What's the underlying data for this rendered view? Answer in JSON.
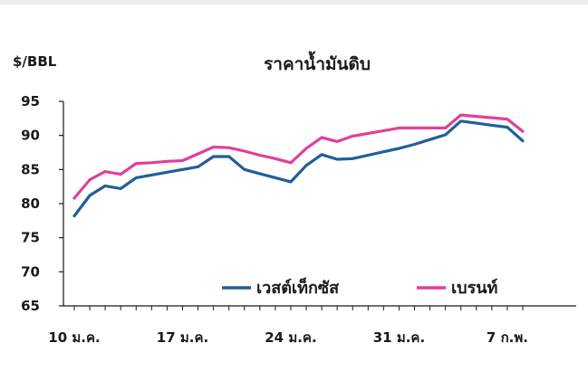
{
  "chart_data": {
    "type": "line",
    "title": "ราคาน้ำมันดิบ",
    "unit_label": "$/BBL",
    "xlabel": "",
    "ylabel": "",
    "ylim": [
      65,
      95
    ],
    "yticks": [
      65,
      70,
      75,
      80,
      85,
      90,
      95
    ],
    "x_tick_labels": [
      "10 ม.ค.",
      "17 ม.ค.",
      "24 ม.ค.",
      "31 ม.ค.",
      "7 ก.พ."
    ],
    "x_tick_index": [
      0,
      7,
      14,
      21,
      28
    ],
    "grid": false,
    "legend_position": "bottom-center",
    "series": [
      {
        "name": "เวสต์เท็กซัส",
        "color": "#1f5f99",
        "values": [
          78.2,
          81.2,
          82.6,
          82.2,
          83.8,
          84.2,
          84.6,
          85.0,
          85.4,
          86.9,
          86.9,
          85.0,
          84.4,
          83.8,
          83.2,
          85.6,
          87.2,
          86.5,
          86.6,
          87.1,
          87.6,
          88.1,
          88.7,
          89.4,
          90.1,
          92.1,
          91.8,
          91.5,
          91.2,
          89.2
        ]
      },
      {
        "name": "เบรนท์",
        "color": "#e0409a",
        "values": [
          80.8,
          83.5,
          84.7,
          84.3,
          85.9,
          86.0,
          86.2,
          86.3,
          87.3,
          88.3,
          88.2,
          87.7,
          87.1,
          86.6,
          86.0,
          88.1,
          89.7,
          89.1,
          89.9,
          90.3,
          90.7,
          91.1,
          91.1,
          91.1,
          91.1,
          93.0,
          92.8,
          92.6,
          92.4,
          90.6
        ]
      }
    ]
  }
}
